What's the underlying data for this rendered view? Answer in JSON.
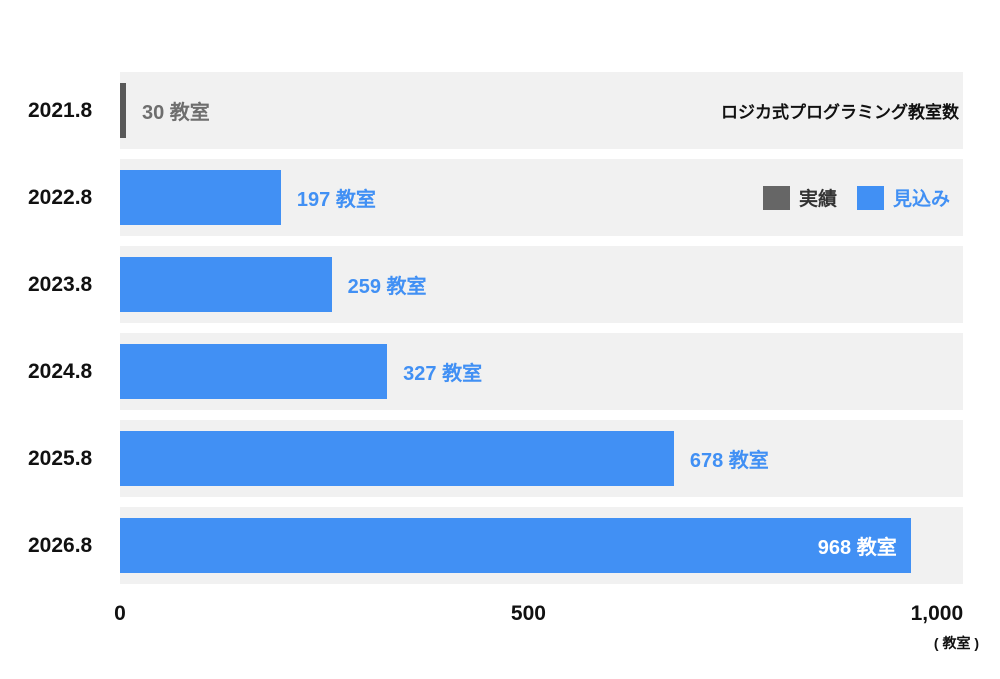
{
  "chart_data": {
    "type": "bar",
    "orientation": "horizontal",
    "title": "ロジカ式プログラミング教室数",
    "categories": [
      "2021.8",
      "2022.8",
      "2023.8",
      "2024.8",
      "2025.8",
      "2026.8"
    ],
    "values": [
      30,
      197,
      259,
      327,
      678,
      968
    ],
    "value_labels": [
      "30 教室",
      "197 教室",
      "259 教室",
      "327 教室",
      "678 教室",
      "968 教室"
    ],
    "series": [
      "actual",
      "forecast",
      "forecast",
      "forecast",
      "forecast",
      "forecast"
    ],
    "xlim": [
      0,
      1000
    ],
    "x_ticks": [
      "0",
      "500",
      "1,000"
    ],
    "x_tick_values": [
      0,
      500,
      1000
    ],
    "x_unit_label": "( 教室 )",
    "legend": [
      {
        "id": "actual",
        "label": "実績",
        "color": "#666666"
      },
      {
        "id": "forecast",
        "label": "見込み",
        "color": "#4190f4"
      }
    ],
    "colors": {
      "actual": "#595959",
      "forecast": "#4190f4",
      "actual_text": "#6e6e6e",
      "label_inside": "#ffffff",
      "row_background": "#f1f1f1"
    },
    "grid": false,
    "legend_position": "top-right"
  }
}
